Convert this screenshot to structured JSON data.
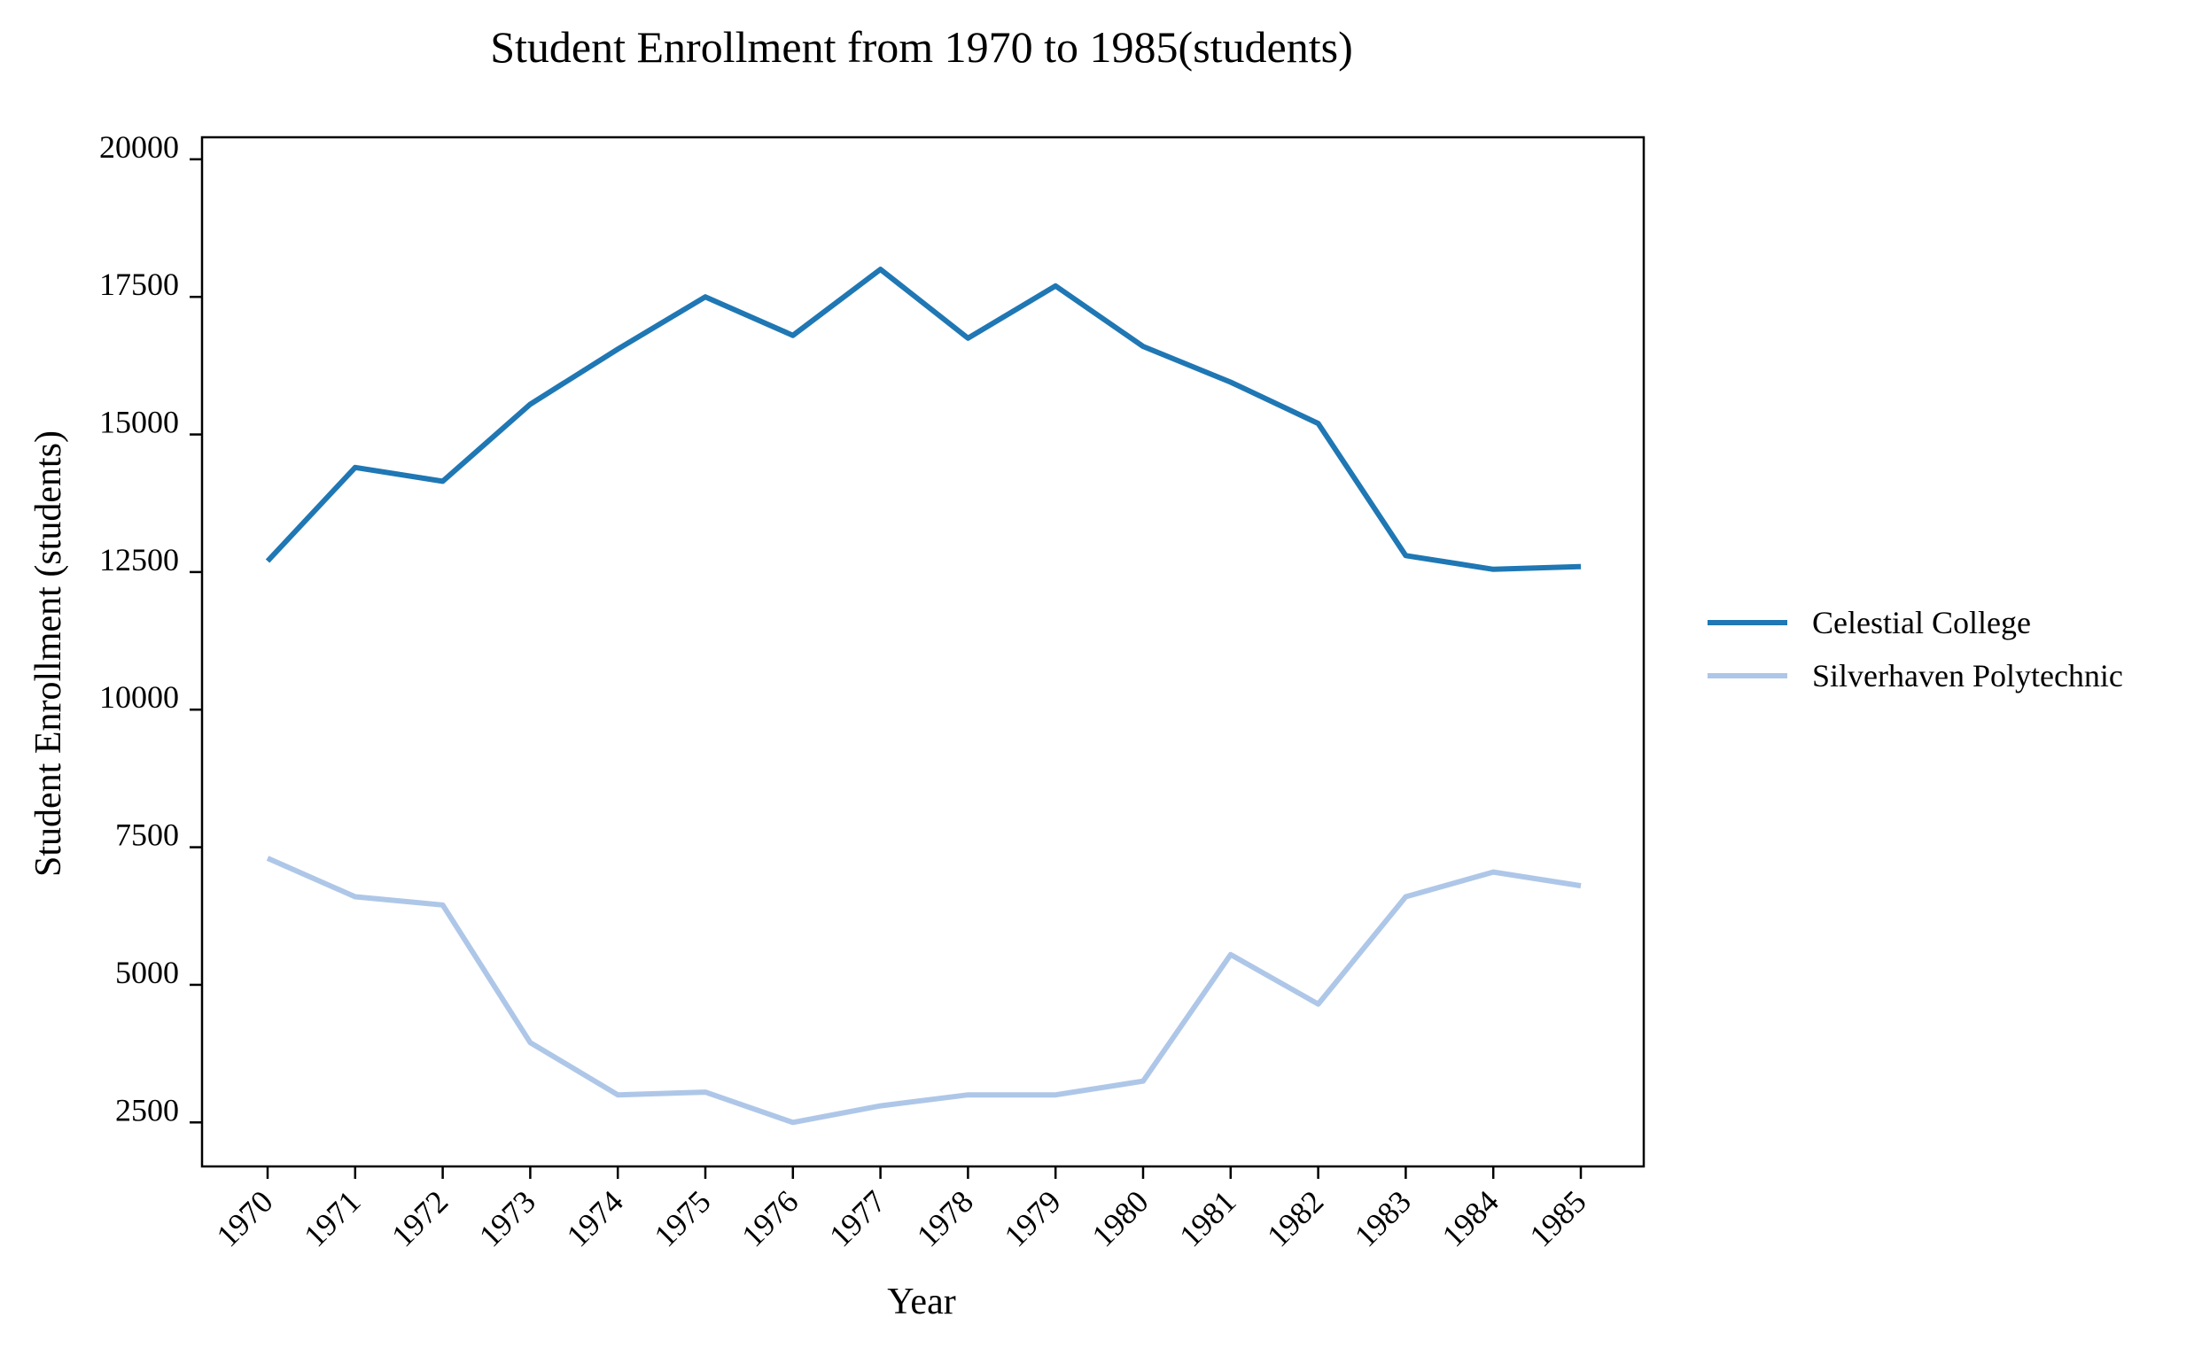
{
  "chart_data": {
    "type": "line",
    "title": "Student Enrollment from 1970 to 1985(students)",
    "xlabel": "Year",
    "ylabel": "Student Enrollment (students)",
    "categories": [
      "1970",
      "1971",
      "1972",
      "1973",
      "1974",
      "1975",
      "1976",
      "1977",
      "1978",
      "1979",
      "1980",
      "1981",
      "1982",
      "1983",
      "1984",
      "1985"
    ],
    "yticks": [
      2500,
      5000,
      7500,
      10000,
      12500,
      15000,
      17500,
      20000
    ],
    "ylim": [
      1700,
      20400
    ],
    "grid": false,
    "legend_position": "right",
    "series": [
      {
        "name": "Celestial College",
        "color": "#1f77b4",
        "values": [
          12700,
          14400,
          14150,
          15550,
          16550,
          17500,
          16800,
          18000,
          16750,
          17700,
          16600,
          15950,
          15200,
          12800,
          12550,
          12600
        ]
      },
      {
        "name": "Silverhaven Polytechnic",
        "color": "#aec7e8",
        "values": [
          7300,
          6600,
          6450,
          3950,
          3000,
          3050,
          2500,
          2800,
          3000,
          3000,
          3250,
          5550,
          4650,
          6600,
          7050,
          6800
        ]
      }
    ]
  }
}
